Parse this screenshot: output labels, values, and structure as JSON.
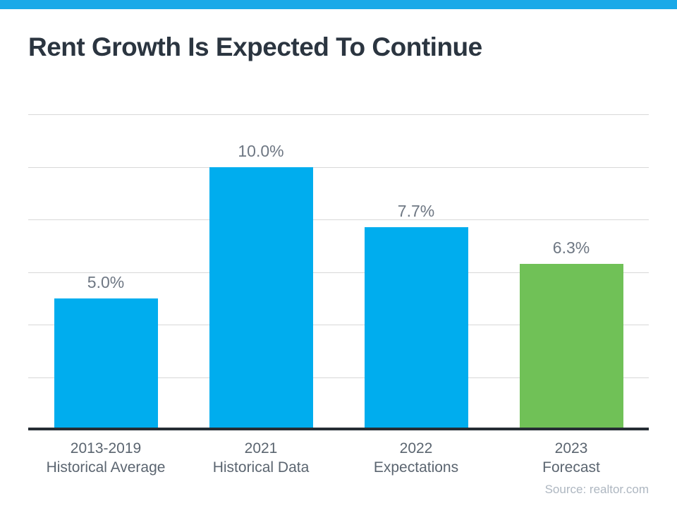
{
  "title": "Rent Growth Is Expected To Continue",
  "source_label": "Source: realtor.com",
  "colors": {
    "banner_accent": "#1aa9e8",
    "bar_blue": "#00adee",
    "bar_green": "#70c157",
    "gridline": "#d8d8d8",
    "axis_line": "#262d34",
    "title_text": "#2b3540",
    "category_text": "#5b6570",
    "value_text": "#6e7783",
    "source_text": "#aeb7c1"
  },
  "chart_data": {
    "type": "bar",
    "categories": [
      "2013-2019 Historical Average",
      "2021 Historical Data",
      "2022 Expectations",
      "2023 Forecast"
    ],
    "category_lines": [
      [
        "2013-2019",
        "Historical Average"
      ],
      [
        "2021",
        "Historical Data"
      ],
      [
        "2022",
        "Expectations"
      ],
      [
        "2023",
        "Forecast"
      ]
    ],
    "values": [
      5.0,
      10.0,
      7.7,
      6.3
    ],
    "value_labels": [
      "5.0%",
      "10.0%",
      "7.7%",
      "6.3%"
    ],
    "bar_colors": [
      "#00adee",
      "#00adee",
      "#00adee",
      "#70c157"
    ],
    "title": "Rent Growth Is Expected To Continue",
    "xlabel": "",
    "ylabel": "",
    "ylim": [
      0,
      12
    ],
    "grid_step": 2,
    "grid": true,
    "legend": false,
    "annotations": [
      "Source: realtor.com"
    ]
  }
}
